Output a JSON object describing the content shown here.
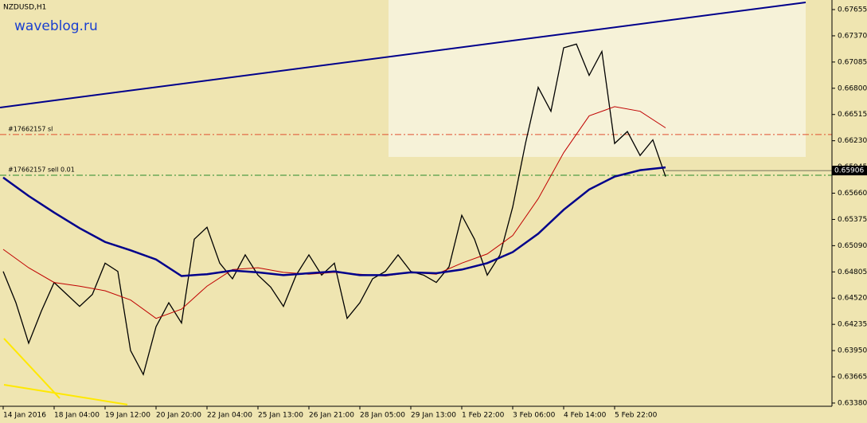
{
  "chart_data": {
    "type": "line",
    "title": "NZDUSD,H1",
    "watermark": "waveblog.ru",
    "ylim": [
      0.63345,
      0.67759
    ],
    "yticks": [
      0.67655,
      {
        "value": 0.6737,
        "label": "0.67370"
      },
      0.67085,
      {
        "value": 0.668,
        "label": "0.66800"
      },
      0.66515,
      {
        "value": 0.6623,
        "label": "0.66230"
      },
      0.65945,
      {
        "value": 0.6566,
        "label": "0.65660"
      },
      0.65375,
      {
        "value": 0.6509,
        "label": "0.65090"
      },
      0.64805,
      {
        "value": 0.6452,
        "label": "0.64520"
      },
      0.64235,
      {
        "value": 0.6395,
        "label": "0.63950"
      },
      0.63665,
      {
        "value": 0.6338,
        "label": "0.63380"
      }
    ],
    "xlabels": [
      "14 Jan 2016",
      "18 Jan 04:00",
      "19 Jan 12:00",
      "20 Jan 20:00",
      "22 Jan 04:00",
      "25 Jan 13:00",
      "26 Jan 21:00",
      "28 Jan 05:00",
      "29 Jan 13:00",
      "1 Feb 22:00",
      "3 Feb 06:00",
      "4 Feb 14:00",
      "5 Feb 22:00"
    ],
    "series": [
      {
        "color": "#000000",
        "width": 1.3,
        "values": [
          0.6481,
          0.6447,
          0.6403,
          0.6438,
          0.6469,
          0.6456,
          0.6443,
          0.6456,
          0.649,
          0.6481,
          0.6395,
          0.6369,
          0.6421,
          0.6447,
          0.6425,
          0.6516,
          0.6529,
          0.649,
          0.6473,
          0.6499,
          0.6477,
          0.6464,
          0.6443,
          0.6477,
          0.6499,
          0.6477,
          0.649,
          0.643,
          0.6447,
          0.6473,
          0.6481,
          0.6499,
          0.6481,
          0.6477,
          0.6469,
          0.6486,
          0.6542,
          0.6516,
          0.6477,
          0.6499,
          0.6551,
          0.662,
          0.6681,
          0.6655,
          0.6724,
          0.6728,
          0.6694,
          0.672,
          0.662,
          0.6633,
          0.6607,
          0.6624,
          0.6584
        ]
      },
      {
        "color": "#c00000",
        "width": 1,
        "values": [
          0.6505,
          0.6485,
          0.6469,
          0.6465,
          0.646,
          0.645,
          0.643,
          0.644,
          0.6465,
          0.6483,
          0.6485,
          0.648,
          0.6478,
          0.648,
          0.6478,
          0.6476,
          0.648,
          0.6478,
          0.649,
          0.65,
          0.652,
          0.656,
          0.661,
          0.665,
          0.666,
          0.6655,
          0.6637
        ]
      },
      {
        "color": "#00008b",
        "width": 2.5,
        "values": [
          0.6583,
          0.6563,
          0.6545,
          0.6528,
          0.6513,
          0.6504,
          0.6494,
          0.6476,
          0.6478,
          0.6482,
          0.648,
          0.6477,
          0.6479,
          0.6481,
          0.6477,
          0.6477,
          0.648,
          0.6479,
          0.6483,
          0.649,
          0.6502,
          0.6522,
          0.6548,
          0.657,
          0.6584,
          0.6591,
          0.6594
        ]
      }
    ],
    "trendline": {
      "color": "#00008b",
      "values": [
        0.66591,
        0.67733
      ]
    },
    "yellow_lines": [
      {
        "color": "#ffe800",
        "values": [
          0.64081,
          0.63432
        ]
      },
      {
        "color": "#ffe800",
        "values": [
          0.63579,
          0.63363
        ]
      }
    ],
    "zone": [
      0.66054,
      0.67759
    ],
    "levels": [
      {
        "label": "#17662157 sl",
        "value": 0.66297,
        "color": "#e05030"
      },
      {
        "label": "#17662157 sell 0.01",
        "value": 0.65855,
        "color": "#2a8a2a"
      }
    ],
    "bid": 0.65906
  }
}
